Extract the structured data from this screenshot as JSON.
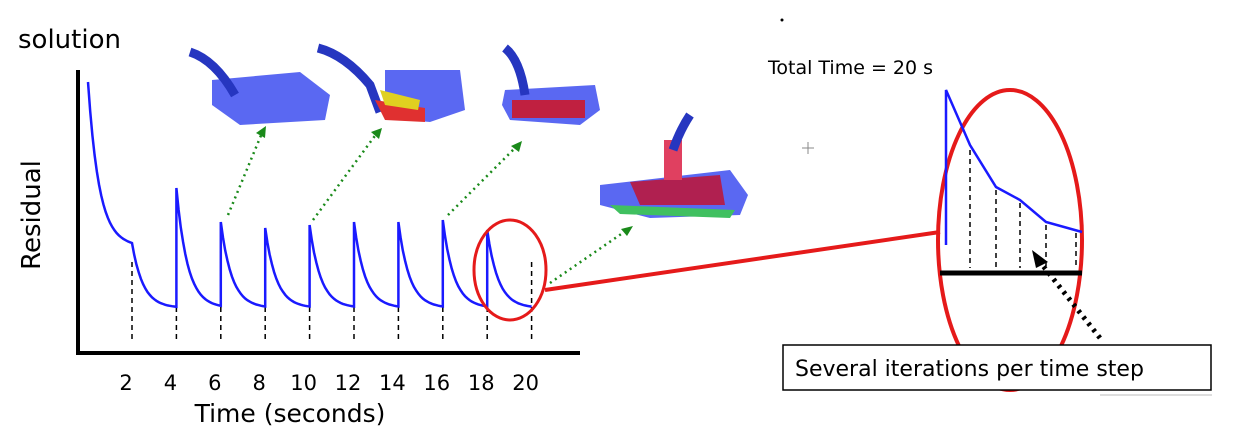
{
  "title": "solution",
  "plot": {
    "y_label": "Residual",
    "x_label": "Time (seconds)",
    "x_ticks": [
      2,
      4,
      6,
      8,
      10,
      12,
      14,
      16,
      18,
      20
    ]
  },
  "annotations": {
    "total_time": "Total Time = 20 s",
    "callout": "Several iterations per time step"
  }
}
